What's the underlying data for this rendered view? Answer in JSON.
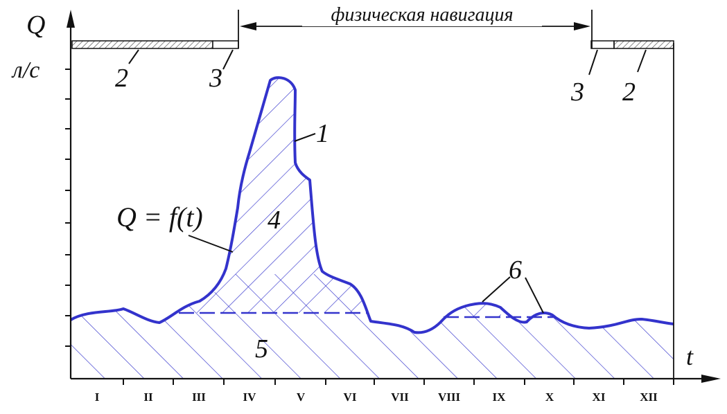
{
  "axis": {
    "y_symbol": "Q",
    "y_unit": "л/с",
    "x_symbol": "t"
  },
  "months": [
    "I",
    "II",
    "III",
    "IV",
    "V",
    "VI",
    "VII",
    "VIII",
    "IX",
    "X",
    "XI",
    "XII"
  ],
  "navigation_label": "физическая навигация",
  "formula": "Q = f(t)",
  "callouts": {
    "flood_curve": "1",
    "ice_left": "2",
    "transition_left": "3",
    "transition_right": "3",
    "ice_right": "2",
    "flood_volume": "4",
    "base_flow": "5",
    "rain_floods": "6"
  },
  "colors": {
    "curve": "#3333cc",
    "hatch": "#3333cc",
    "ink": "#111111",
    "ice_bar": "#c9c9c9"
  }
}
